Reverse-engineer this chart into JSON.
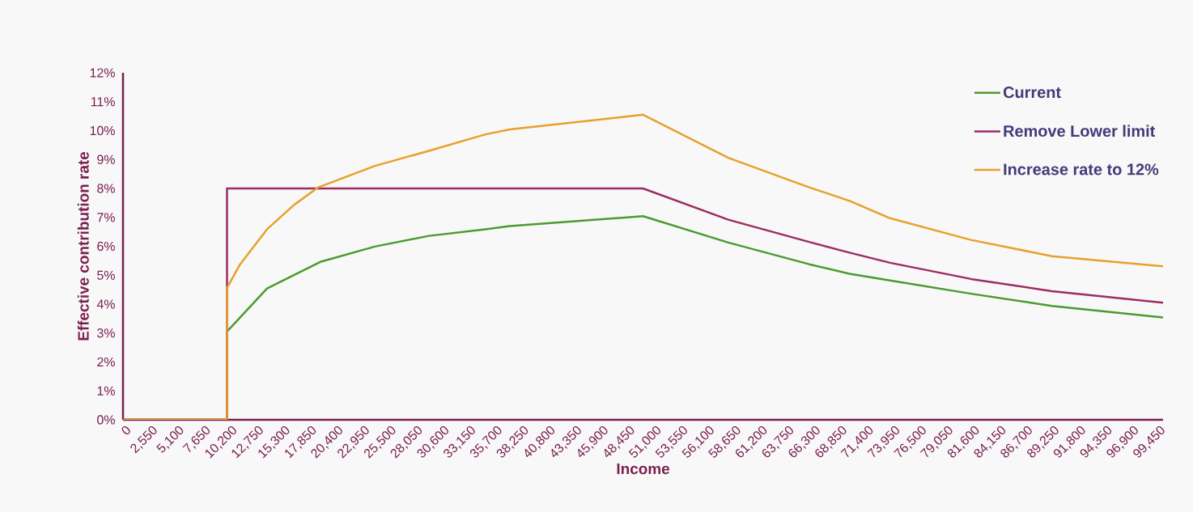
{
  "chart_data": {
    "type": "line",
    "xlabel": "Income",
    "ylabel": "Effective contribution rate",
    "xlim": [
      0,
      100000
    ],
    "ylim": [
      0,
      12
    ],
    "xticks": [
      0,
      {
        "value": 2550,
        "label": "2,550"
      },
      {
        "value": 5100,
        "label": "5,100"
      },
      {
        "value": 7650,
        "label": "7,650"
      },
      {
        "value": 10200,
        "label": "10,200"
      },
      {
        "value": 12750,
        "label": "12,750"
      },
      {
        "value": 15300,
        "label": "15,300"
      },
      {
        "value": 17850,
        "label": "17,850"
      },
      {
        "value": 20400,
        "label": "20,400"
      },
      {
        "value": 22950,
        "label": "22,950"
      },
      {
        "value": 25500,
        "label": "25,500"
      },
      {
        "value": 28050,
        "label": "28,050"
      },
      {
        "value": 30600,
        "label": "30,600"
      },
      {
        "value": 33150,
        "label": "33,150"
      },
      {
        "value": 35700,
        "label": "35,700"
      },
      {
        "value": 38250,
        "label": "38,250"
      },
      {
        "value": 40800,
        "label": "40,800"
      },
      {
        "value": 43350,
        "label": "43,350"
      },
      {
        "value": 45900,
        "label": "45,900"
      },
      {
        "value": 48450,
        "label": "48,450"
      },
      {
        "value": 51000,
        "label": "51,000"
      },
      {
        "value": 53550,
        "label": "53,550"
      },
      {
        "value": 56100,
        "label": "56,100"
      },
      {
        "value": 58650,
        "label": "58,650"
      },
      {
        "value": 61200,
        "label": "61,200"
      },
      {
        "value": 63750,
        "label": "63,750"
      },
      {
        "value": 66300,
        "label": "66,300"
      },
      {
        "value": 68850,
        "label": "68,850"
      },
      {
        "value": 71400,
        "label": "71,400"
      },
      {
        "value": 73950,
        "label": "73,950"
      },
      {
        "value": 76500,
        "label": "76,500"
      },
      {
        "value": 79050,
        "label": "79,050"
      },
      {
        "value": 81600,
        "label": "81,600"
      },
      {
        "value": 84150,
        "label": "84,150"
      },
      {
        "value": 86700,
        "label": "86,700"
      },
      {
        "value": 89250,
        "label": "89,250"
      },
      {
        "value": 91800,
        "label": "91,800"
      },
      {
        "value": 94350,
        "label": "94,350"
      },
      {
        "value": 96900,
        "label": "96,900"
      },
      {
        "value": 99450,
        "label": "99,450"
      }
    ],
    "yticks": [
      {
        "value": 0,
        "label": "0%"
      },
      {
        "value": 1,
        "label": "1%"
      },
      {
        "value": 2,
        "label": "2%"
      },
      {
        "value": 3,
        "label": "3%"
      },
      {
        "value": 4,
        "label": "4%"
      },
      {
        "value": 5,
        "label": "5%"
      },
      {
        "value": 6,
        "label": "6%"
      },
      {
        "value": 7,
        "label": "7%"
      },
      {
        "value": 8,
        "label": "8%"
      },
      {
        "value": 9,
        "label": "9%"
      },
      {
        "value": 10,
        "label": "10%"
      },
      {
        "value": 11,
        "label": "11%"
      },
      {
        "value": 12,
        "label": "12%"
      }
    ],
    "legend": "top right",
    "series": [
      {
        "name": "Current",
        "color": "#4a9b2f",
        "x": [
          0,
          10000,
          10000,
          13850,
          19040,
          24200,
          29400,
          34850,
          37190,
          50000,
          58200,
          65970,
          69860,
          73750,
          81530,
          89310,
          100000
        ],
        "values": [
          0,
          0,
          3.05,
          4.54,
          5.47,
          5.99,
          6.36,
          6.59,
          6.7,
          7.04,
          6.13,
          5.38,
          5.05,
          4.82,
          4.36,
          3.94,
          3.54
        ]
      },
      {
        "name": "Remove Lower limit",
        "color": "#9b2d62",
        "x": [
          0,
          10000,
          10000,
          50000,
          58200,
          65970,
          69860,
          73750,
          81530,
          89310,
          100000
        ],
        "values": [
          0,
          0,
          8,
          8,
          6.92,
          6.15,
          5.78,
          5.43,
          4.87,
          4.45,
          4.05
        ]
      },
      {
        "name": "Increase rate to 12%",
        "color": "#e8a02a",
        "x": [
          0,
          10000,
          10000,
          11260,
          13850,
          16440,
          18780,
          24220,
          29410,
          34850,
          37190,
          50000,
          58200,
          65970,
          69860,
          73750,
          81530,
          89310,
          100000
        ],
        "values": [
          0,
          0,
          4.56,
          5.38,
          6.59,
          7.43,
          8.04,
          8.78,
          9.3,
          9.87,
          10.04,
          10.55,
          9.06,
          8.04,
          7.57,
          6.97,
          6.22,
          5.66,
          5.31
        ]
      }
    ]
  }
}
